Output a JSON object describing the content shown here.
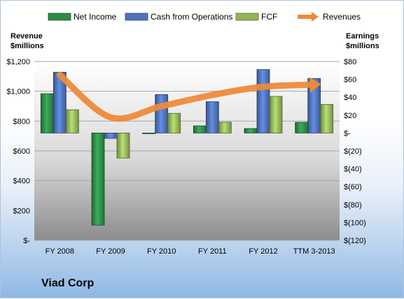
{
  "company": "Viad Corp",
  "chart_data": {
    "type": "bar",
    "categories": [
      "FY 2008",
      "FY 2009",
      "FY 2010",
      "FY 2011",
      "FY 2012",
      "TTM 3-2013"
    ],
    "series": [
      {
        "name": "Net Income",
        "axis": "right",
        "color": "#2e8b47",
        "values": [
          44,
          -103,
          0,
          8,
          5,
          12
        ]
      },
      {
        "name": "Cash from Operations",
        "axis": "right",
        "color": "#4f72b8",
        "values": [
          68,
          -6,
          43,
          35,
          71,
          61
        ]
      },
      {
        "name": "FCF",
        "axis": "right",
        "color": "#93b45a",
        "values": [
          26,
          -28,
          22,
          12,
          41,
          32
        ]
      },
      {
        "name": "Revenues",
        "axis": "left",
        "type": "line",
        "color": "#ee8a3a",
        "values": [
          1110,
          825,
          900,
          975,
          1030,
          1045
        ]
      }
    ],
    "left_axis": {
      "title_line1": "Revenue",
      "title_line2": "$millions",
      "range": [
        0,
        1200
      ],
      "ticks": [
        1200,
        1000,
        800,
        600,
        400,
        200,
        0
      ],
      "tick_labels": [
        "$1,200",
        "$1,000",
        "$800",
        "$600",
        "$400",
        "$200",
        "$-"
      ]
    },
    "right_axis": {
      "title_line1": "Earnings",
      "title_line2": "$millions",
      "range": [
        -120,
        80
      ],
      "ticks": [
        80,
        60,
        40,
        20,
        0,
        -20,
        -40,
        -60,
        -80,
        -100,
        -120
      ],
      "tick_labels": [
        "$80",
        "$60",
        "$40",
        "$20",
        "$-",
        "$(20)",
        "$(40)",
        "$(60)",
        "$(80)",
        "$(100)",
        "$(120)"
      ]
    },
    "legend_position": "top",
    "grid": true
  }
}
